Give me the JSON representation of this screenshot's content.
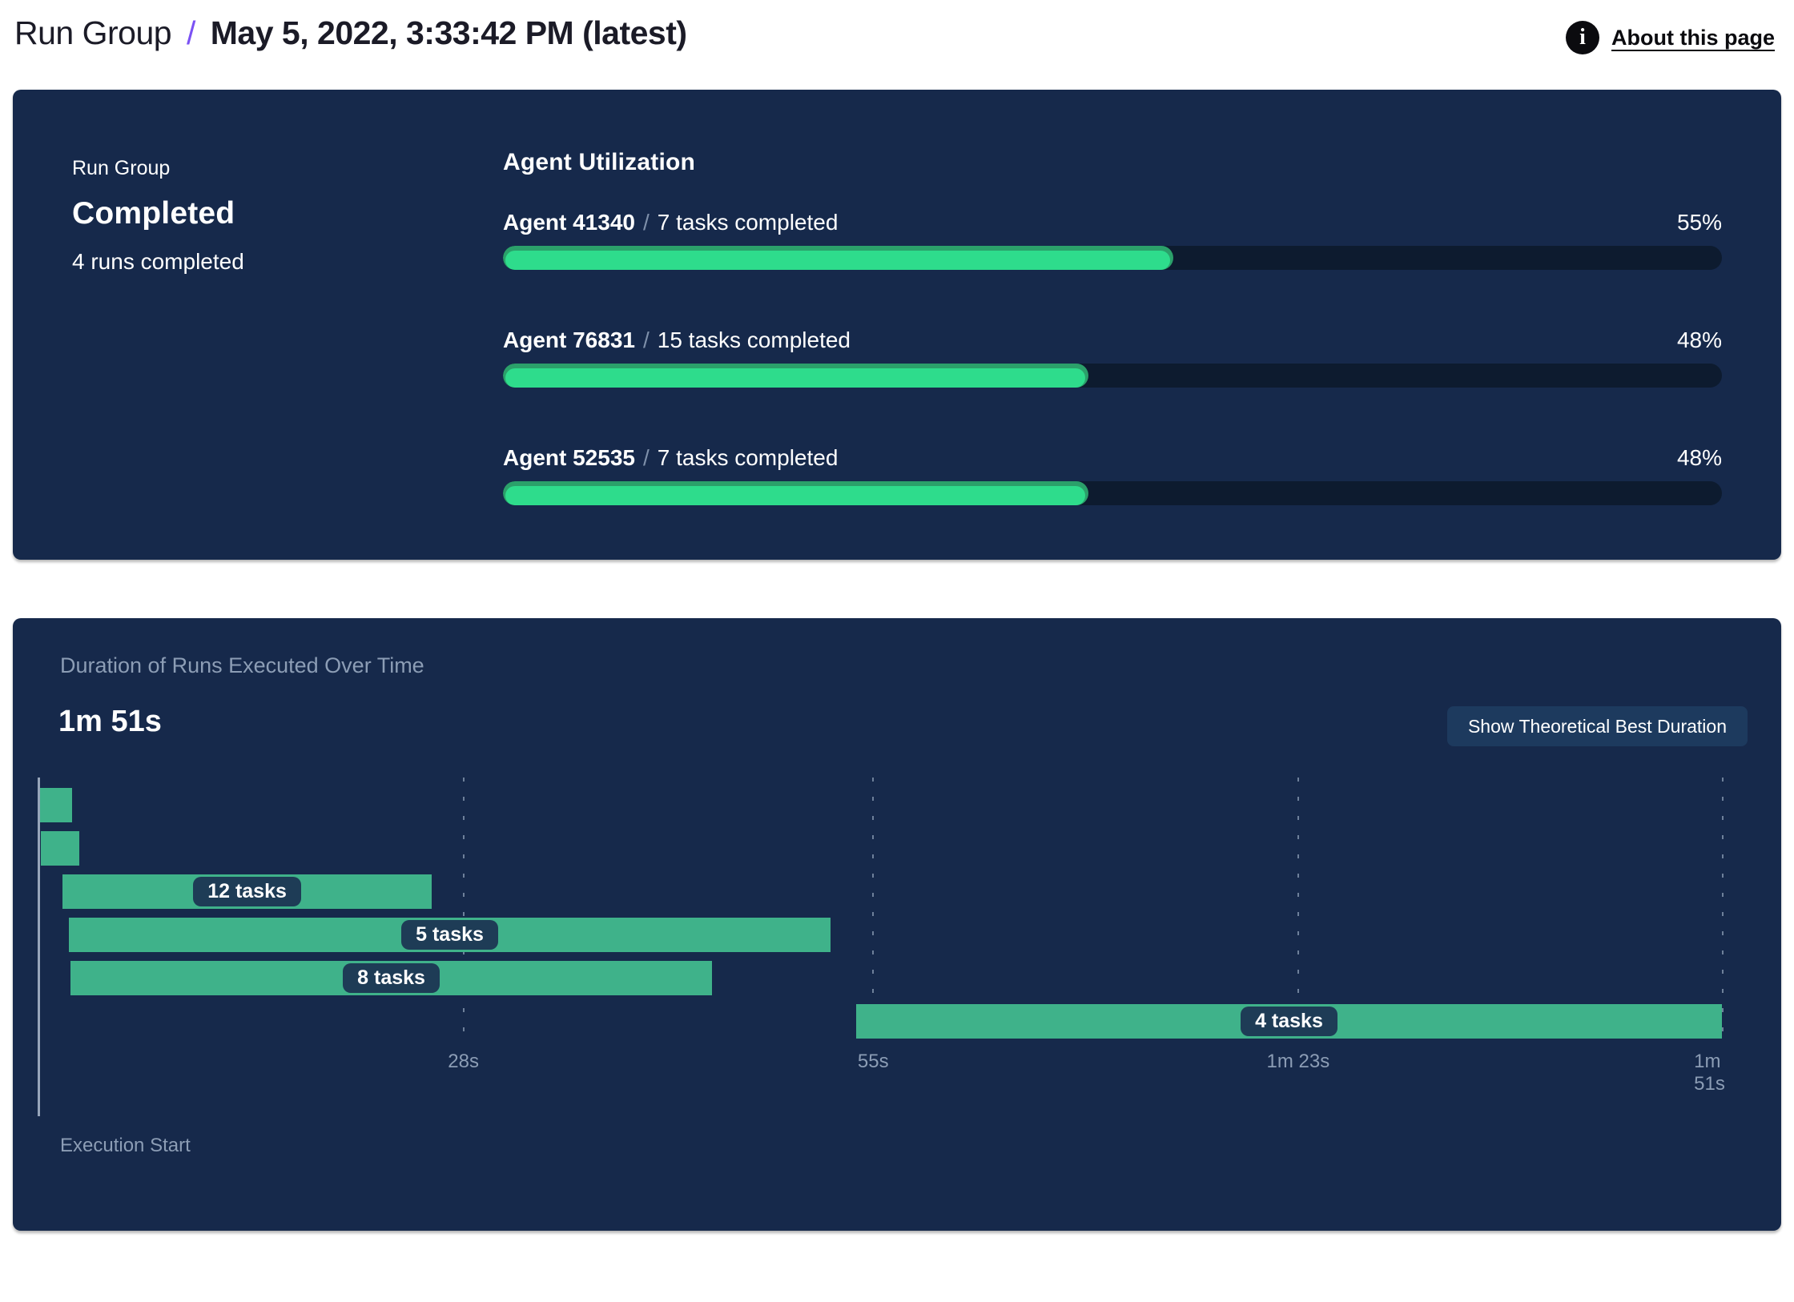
{
  "header": {
    "breadcrumb": "Run Group",
    "separator": "/",
    "title": "May 5, 2022, 3:33:42 PM (latest)",
    "info_icon": "i",
    "about_link": "About this page"
  },
  "status_card": {
    "label": "Run Group",
    "status": "Completed",
    "runs_completed": "4 runs completed",
    "utilization": {
      "title": "Agent Utilization",
      "agents": [
        {
          "name": "Agent 41340",
          "separator": "/",
          "tasks": "7 tasks completed",
          "percent": "55%",
          "percent_value": 55
        },
        {
          "name": "Agent 76831",
          "separator": "/",
          "tasks": "15 tasks completed",
          "percent": "48%",
          "percent_value": 48
        },
        {
          "name": "Agent 52535",
          "separator": "/",
          "tasks": "7 tasks completed",
          "percent": "48%",
          "percent_value": 48
        }
      ]
    }
  },
  "duration_card": {
    "title": "Duration of Runs Executed Over Time",
    "total_duration": "1m 51s",
    "button_label": "Show Theoretical Best Duration",
    "execution_start_label": "Execution Start"
  },
  "chart_data": {
    "type": "gantt",
    "title": "Duration of Runs Executed Over Time",
    "total_duration_label": "1m 51s",
    "x_axis": {
      "unit": "seconds",
      "range": [
        0,
        111
      ],
      "ticks": [
        {
          "s": 28,
          "label": "28s"
        },
        {
          "s": 55,
          "label": "55s"
        },
        {
          "s": 83,
          "label": "1m 23s"
        },
        {
          "s": 111,
          "label": "1m 51s"
        }
      ]
    },
    "runs": [
      {
        "start_s": 0.1,
        "end_s": 2.2,
        "tasks": null,
        "label": ""
      },
      {
        "start_s": 0.15,
        "end_s": 2.7,
        "tasks": null,
        "label": ""
      },
      {
        "start_s": 1.6,
        "end_s": 25.9,
        "tasks": 12,
        "label": "12 tasks"
      },
      {
        "start_s": 2.0,
        "end_s": 52.2,
        "tasks": 5,
        "label": "5 tasks"
      },
      {
        "start_s": 2.1,
        "end_s": 44.4,
        "tasks": 8,
        "label": "8 tasks"
      },
      {
        "start_s": 53.9,
        "end_s": 110.9,
        "tasks": 4,
        "label": "4 tasks"
      }
    ]
  },
  "colors": {
    "card_navy": "#16294b",
    "progress_track": "#0d1b2f",
    "progress_green": "#2edc8c",
    "progress_green_dark": "#2ba06a",
    "gantt_green": "#3fb28a",
    "pill_navy": "#1e3c56",
    "muted_text": "#8c9db5",
    "accent_purple": "#7b52f4"
  }
}
